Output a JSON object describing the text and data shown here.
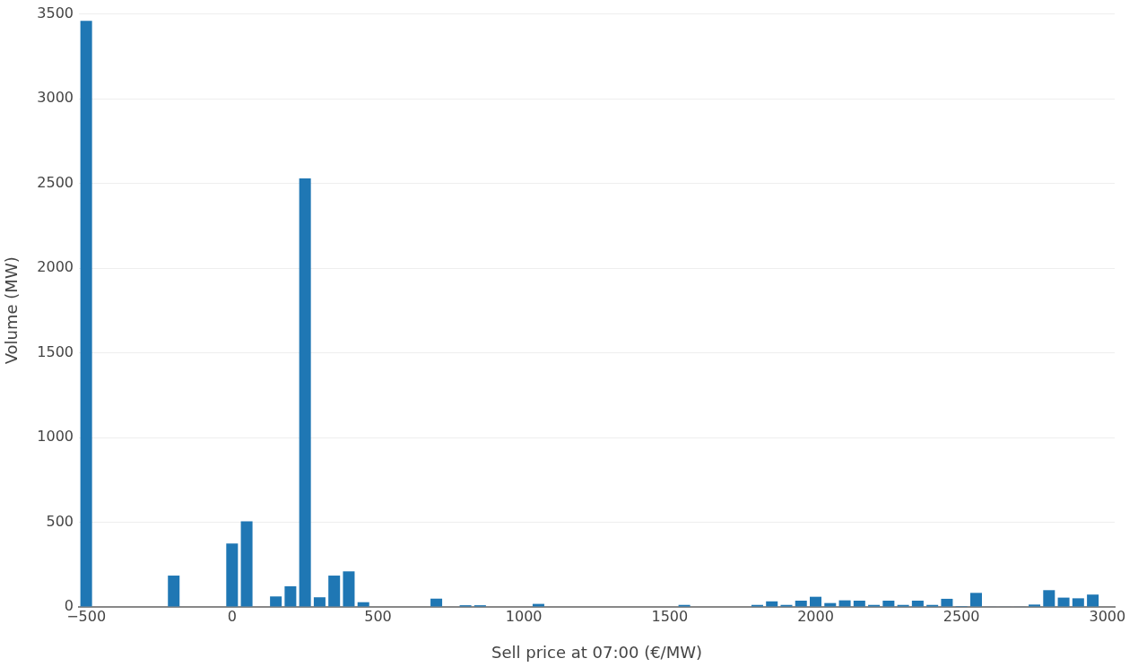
{
  "chart_data": {
    "type": "histogram",
    "xlabel": "Sell price at 07:00 (€/MW)",
    "ylabel": "Volume (MW)",
    "color": "#1f77b4",
    "bins": [
      -525,
      -475,
      -425,
      -375,
      -325,
      -275,
      -225,
      -175,
      -125,
      -75,
      -25,
      25,
      75,
      125,
      175,
      225,
      275,
      325,
      375,
      425,
      475,
      525,
      575,
      625,
      675,
      725,
      775,
      825,
      875,
      925,
      975,
      1025,
      1075,
      1125,
      1175,
      1225,
      1275,
      1325,
      1375,
      1425,
      1475,
      1525,
      1575,
      1625,
      1675,
      1725,
      1775,
      1825,
      1875,
      1925,
      1975,
      2025,
      2075,
      2125,
      2175,
      2225,
      2275,
      2325,
      2375,
      2425,
      2475,
      2525,
      2575,
      2625,
      2675,
      2725,
      2775,
      2825,
      2875,
      2925,
      2975,
      3025
    ],
    "values": [
      3460,
      0,
      0,
      0,
      0,
      0,
      185,
      0,
      0,
      0,
      375,
      505,
      0,
      62,
      122,
      2530,
      57,
      185,
      210,
      28,
      0,
      0,
      0,
      0,
      49,
      0,
      10,
      10,
      0,
      0,
      0,
      18,
      0,
      0,
      0,
      0,
      0,
      0,
      0,
      0,
      0,
      12,
      0,
      0,
      0,
      0,
      12,
      33,
      12,
      37,
      60,
      23,
      39,
      37,
      12,
      37,
      12,
      37,
      12,
      48,
      5,
      83,
      3,
      3,
      3,
      14,
      99,
      55,
      51,
      73,
      0
    ],
    "xlim": [
      -525,
      3025
    ],
    "xticks": [
      -500,
      0,
      500,
      1000,
      1500,
      2000,
      2500,
      3000
    ],
    "ylim": [
      0,
      3500
    ],
    "yticks": [
      0,
      500,
      1000,
      1500,
      2000,
      2500,
      3000,
      3500
    ],
    "grid": "y",
    "legend": false
  }
}
